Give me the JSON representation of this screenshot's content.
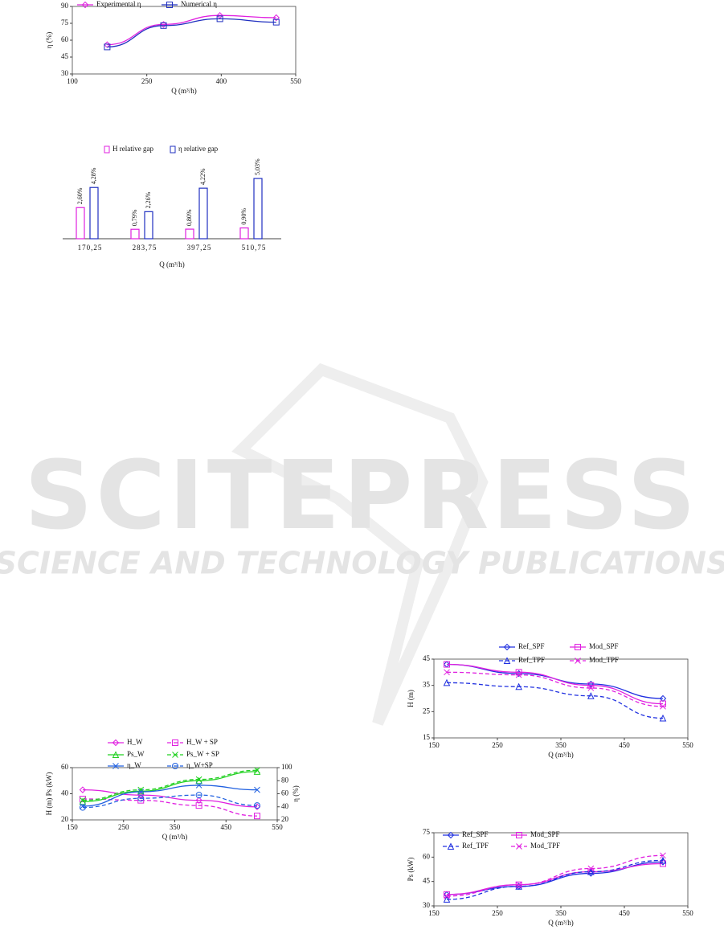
{
  "watermark": {
    "title": "SCITEPRESS",
    "subtitle": "SCIENCE AND TECHNOLOGY PUBLICATIONS"
  },
  "chart_data": [
    {
      "type": "line",
      "xlabel": "Q (m³/h)",
      "ylabel": "η (%)",
      "x": [
        170.25,
        283.75,
        397.25,
        510.75
      ],
      "xlim": [
        100,
        550
      ],
      "xticks": [
        100,
        250,
        400,
        550
      ],
      "ylim": [
        30,
        90
      ],
      "yticks": [
        30,
        45,
        60,
        75,
        90
      ],
      "series": [
        {
          "name": "Experimental η",
          "color": "#e020e0",
          "marker": "diamond",
          "dash": false,
          "values": [
            56,
            74,
            82,
            80
          ]
        },
        {
          "name": "Numerical η",
          "color": "#2030c0",
          "marker": "square",
          "dash": false,
          "values": [
            54,
            73,
            79,
            76
          ]
        }
      ]
    },
    {
      "type": "bar",
      "xlabel": "Q (m³/h)",
      "categories": [
        "170,25",
        "283,75",
        "397,25",
        "510,75"
      ],
      "series": [
        {
          "name": "H relative gap",
          "color": "#e020e0",
          "values": [
            2.6,
            0.79,
            0.8,
            0.9
          ],
          "value_labels": [
            "2,60%",
            "0,79%",
            "0,80%",
            "0,90%"
          ]
        },
        {
          "name": "η relative gap",
          "color": "#2030c0",
          "values": [
            4.28,
            2.26,
            4.22,
            5.03
          ],
          "value_labels": [
            "4,28%",
            "2,26%",
            "4,22%",
            "5,03%"
          ]
        }
      ]
    },
    {
      "type": "line",
      "xlabel": "Q (m³/h)",
      "ylabel": "H (m)  Ps (kW)",
      "y2label": "η (%)",
      "x": [
        170.25,
        283.75,
        397.25,
        510.75
      ],
      "xlim": [
        150,
        550
      ],
      "xticks": [
        150,
        250,
        350,
        450,
        550
      ],
      "ylim": [
        20,
        60
      ],
      "yticks": [
        20,
        40,
        60
      ],
      "y2lim": [
        20,
        100
      ],
      "y2ticks": [
        20,
        40,
        60,
        80,
        100
      ],
      "series": [
        {
          "name": "H_W",
          "color": "#e020e0",
          "marker": "diamond",
          "dash": false,
          "values": [
            43,
            39,
            35,
            30
          ]
        },
        {
          "name": "H_W + SP",
          "color": "#e020e0",
          "marker": "square",
          "dash": true,
          "values": [
            36,
            35,
            31,
            23
          ]
        },
        {
          "name": "Ps_W",
          "color": "#20d020",
          "marker": "triangle",
          "dash": false,
          "values": [
            34,
            42,
            50,
            57
          ]
        },
        {
          "name": "Ps_W + SP",
          "color": "#20d020",
          "marker": "x",
          "dash": true,
          "values": [
            35,
            43,
            51,
            58
          ]
        },
        {
          "name": "η_W",
          "color": "#2060e0",
          "marker": "x",
          "dash": false,
          "axis": "y2",
          "values": [
            41,
            63,
            73,
            66
          ]
        },
        {
          "name": "η_W+SP",
          "color": "#2060e0",
          "marker": "circle",
          "dash": true,
          "axis": "y2",
          "values": [
            39,
            53,
            58,
            42
          ]
        }
      ]
    },
    {
      "type": "line",
      "xlabel": "Q (m³/h)",
      "ylabel": "H (m)",
      "x": [
        170.25,
        283.75,
        397.25,
        510.75
      ],
      "xlim": [
        150,
        550
      ],
      "xticks": [
        150,
        250,
        350,
        450,
        550
      ],
      "ylim": [
        15,
        45
      ],
      "yticks": [
        15,
        25,
        35,
        45
      ],
      "series": [
        {
          "name": "Ref_SPF",
          "color": "#2030e0",
          "marker": "diamond",
          "dash": false,
          "values": [
            43,
            39.5,
            35.5,
            30
          ]
        },
        {
          "name": "Mod_SPF",
          "color": "#e020e0",
          "marker": "square",
          "dash": false,
          "values": [
            43,
            40,
            35,
            28
          ]
        },
        {
          "name": "Ref_TPF",
          "color": "#2030e0",
          "marker": "triangle",
          "dash": true,
          "values": [
            36,
            34.5,
            31,
            22.5
          ]
        },
        {
          "name": "Mod_TPF",
          "color": "#e020e0",
          "marker": "x",
          "dash": true,
          "values": [
            40,
            39,
            34,
            27
          ]
        }
      ]
    },
    {
      "type": "line",
      "xlabel": "Q (m³/h)",
      "ylabel": "Ps (kW)",
      "x": [
        170.25,
        283.75,
        397.25,
        510.75
      ],
      "xlim": [
        150,
        550
      ],
      "xticks": [
        150,
        250,
        350,
        450,
        550
      ],
      "ylim": [
        30,
        75
      ],
      "yticks": [
        30,
        45,
        60,
        75
      ],
      "series": [
        {
          "name": "Ref_SPF",
          "color": "#2030e0",
          "marker": "diamond",
          "dash": false,
          "values": [
            37,
            42,
            50,
            57
          ]
        },
        {
          "name": "Mod_SPF",
          "color": "#e020e0",
          "marker": "square",
          "dash": false,
          "values": [
            37,
            43,
            51,
            56
          ]
        },
        {
          "name": "Ref_TPF",
          "color": "#2030e0",
          "marker": "triangle",
          "dash": true,
          "values": [
            34,
            42,
            51,
            58
          ]
        },
        {
          "name": "Mod_TPF",
          "color": "#e020e0",
          "marker": "x",
          "dash": true,
          "values": [
            36,
            43,
            53,
            61
          ]
        }
      ]
    }
  ]
}
